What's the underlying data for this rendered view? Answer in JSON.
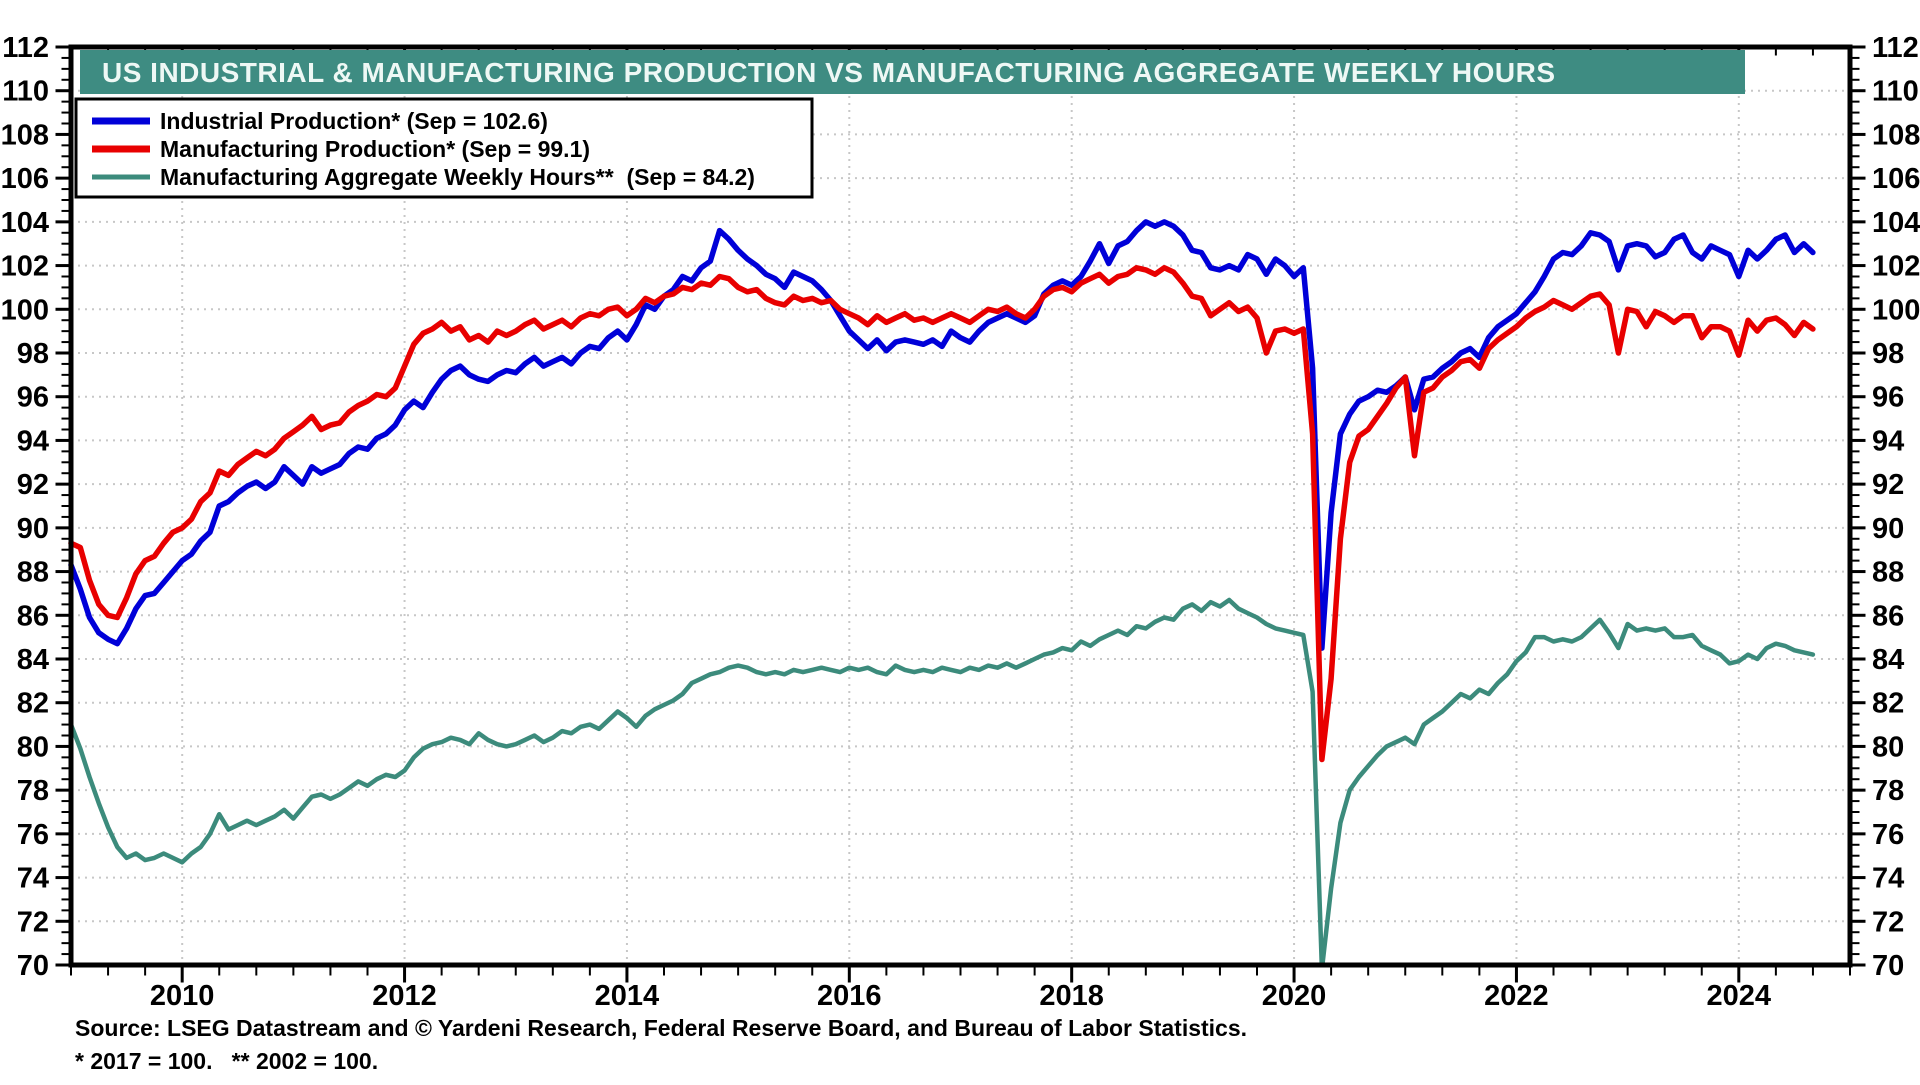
{
  "title": "US INDUSTRIAL & MANUFACTURING PRODUCTION VS MANUFACTURING AGGREGATE WEEKLY HOURS",
  "title_bar_color": "#3e8c82",
  "notes": {
    "source": "Source: LSEG Datastream and © Yardeni Research, Federal Reserve Board, and Bureau of Labor Statistics.",
    "footnote": "* 2017 = 100.   ** 2002 = 100."
  },
  "legend": {
    "items": [
      {
        "label": "Industrial Production* (Sep = 102.6)",
        "color": "#0000d8"
      },
      {
        "label": "Manufacturing Production* (Sep = 99.1)",
        "color": "#e80000"
      },
      {
        "label": "Manufacturing Aggregate Weekly Hours**  (Sep = 84.2)",
        "color": "#3c8b7c"
      }
    ]
  },
  "chart_data": {
    "type": "line",
    "title": "US INDUSTRIAL & MANUFACTURING PRODUCTION VS MANUFACTURING AGGREGATE WEEKLY HOURS",
    "x_start_year": 2009,
    "x_step_months": 1,
    "x_axis": {
      "min": 2009,
      "max": 2025,
      "tick_label_years": [
        2010,
        2012,
        2014,
        2016,
        2018,
        2020,
        2022,
        2024
      ],
      "minor_tick_fraction_of_year": 0.3333
    },
    "y_axis": {
      "min": 70,
      "max": 112,
      "tick_step": 2,
      "minor_step": 0.5,
      "tick_labels": [
        70,
        72,
        74,
        76,
        78,
        80,
        82,
        84,
        86,
        88,
        90,
        92,
        94,
        96,
        98,
        100,
        102,
        104,
        106,
        108,
        110,
        112
      ],
      "both_sides": true
    },
    "grid": {
      "horizontal_every": 2,
      "vertical_every_years": 2,
      "style": "dotted",
      "color": "#c7c7c7"
    },
    "legend_position": "top-left",
    "series": [
      {
        "name": "Industrial Production* (Sep = 102.6)",
        "color": "#0000d8",
        "stroke_width": 5.5,
        "values": [
          88.3,
          87.2,
          85.9,
          85.2,
          84.9,
          84.7,
          85.4,
          86.3,
          86.9,
          87.0,
          87.5,
          88.0,
          88.5,
          88.8,
          89.4,
          89.8,
          91.0,
          91.2,
          91.6,
          91.9,
          92.1,
          91.8,
          92.1,
          92.8,
          92.4,
          92.0,
          92.8,
          92.5,
          92.7,
          92.9,
          93.4,
          93.7,
          93.6,
          94.1,
          94.3,
          94.7,
          95.4,
          95.8,
          95.5,
          96.2,
          96.8,
          97.2,
          97.4,
          97.0,
          96.8,
          96.7,
          97.0,
          97.2,
          97.1,
          97.5,
          97.8,
          97.4,
          97.6,
          97.8,
          97.5,
          98.0,
          98.3,
          98.2,
          98.7,
          99.0,
          98.6,
          99.3,
          100.2,
          100.0,
          100.6,
          100.9,
          101.5,
          101.3,
          101.9,
          102.2,
          103.6,
          103.2,
          102.7,
          102.3,
          102.0,
          101.6,
          101.4,
          101.0,
          101.7,
          101.5,
          101.3,
          100.9,
          100.4,
          99.7,
          99.0,
          98.6,
          98.2,
          98.6,
          98.1,
          98.5,
          98.6,
          98.5,
          98.4,
          98.6,
          98.3,
          99.0,
          98.7,
          98.5,
          99.0,
          99.4,
          99.6,
          99.8,
          99.6,
          99.4,
          99.7,
          100.7,
          101.1,
          101.3,
          101.1,
          101.5,
          102.2,
          103.0,
          102.1,
          102.9,
          103.1,
          103.6,
          104.0,
          103.8,
          104.0,
          103.8,
          103.4,
          102.7,
          102.6,
          101.9,
          101.8,
          102.0,
          101.8,
          102.5,
          102.3,
          101.6,
          102.3,
          102.0,
          101.5,
          101.9,
          97.3,
          84.5,
          90.7,
          94.3,
          95.2,
          95.8,
          96.0,
          96.3,
          96.2,
          96.5,
          96.9,
          95.4,
          96.8,
          96.9,
          97.3,
          97.6,
          98.0,
          98.2,
          97.8,
          98.7,
          99.2,
          99.5,
          99.8,
          100.3,
          100.8,
          101.5,
          102.3,
          102.6,
          102.5,
          102.9,
          103.5,
          103.4,
          103.1,
          101.8,
          102.9,
          103.0,
          102.9,
          102.4,
          102.6,
          103.2,
          103.4,
          102.6,
          102.3,
          102.9,
          102.7,
          102.5,
          101.5,
          102.7,
          102.3,
          102.7,
          103.2,
          103.4,
          102.6,
          103.0,
          102.6
        ]
      },
      {
        "name": "Manufacturing Production* (Sep = 99.1)",
        "color": "#e80000",
        "stroke_width": 5.5,
        "values": [
          89.3,
          89.1,
          87.6,
          86.5,
          86.0,
          85.9,
          86.8,
          87.9,
          88.5,
          88.7,
          89.3,
          89.8,
          90.0,
          90.4,
          91.2,
          91.6,
          92.6,
          92.4,
          92.9,
          93.2,
          93.5,
          93.3,
          93.6,
          94.1,
          94.4,
          94.7,
          95.1,
          94.5,
          94.7,
          94.8,
          95.3,
          95.6,
          95.8,
          96.1,
          96.0,
          96.4,
          97.4,
          98.4,
          98.9,
          99.1,
          99.4,
          99.0,
          99.2,
          98.6,
          98.8,
          98.5,
          99.0,
          98.8,
          99.0,
          99.3,
          99.5,
          99.1,
          99.3,
          99.5,
          99.2,
          99.6,
          99.8,
          99.7,
          100.0,
          100.1,
          99.7,
          100.0,
          100.5,
          100.3,
          100.6,
          100.7,
          101.0,
          100.9,
          101.2,
          101.1,
          101.5,
          101.4,
          101.0,
          100.8,
          100.9,
          100.5,
          100.3,
          100.2,
          100.6,
          100.4,
          100.5,
          100.3,
          100.4,
          100.0,
          99.8,
          99.6,
          99.3,
          99.7,
          99.4,
          99.6,
          99.8,
          99.5,
          99.6,
          99.4,
          99.6,
          99.8,
          99.6,
          99.4,
          99.7,
          100.0,
          99.9,
          100.1,
          99.8,
          99.6,
          100.0,
          100.6,
          100.9,
          101.0,
          100.8,
          101.2,
          101.4,
          101.6,
          101.2,
          101.5,
          101.6,
          101.9,
          101.8,
          101.6,
          101.9,
          101.7,
          101.2,
          100.6,
          100.5,
          99.7,
          100.0,
          100.3,
          99.9,
          100.1,
          99.6,
          98.0,
          99.0,
          99.1,
          98.9,
          99.1,
          94.3,
          79.4,
          83.1,
          89.5,
          93.0,
          94.2,
          94.5,
          95.1,
          95.7,
          96.4,
          96.9,
          93.3,
          96.2,
          96.4,
          96.9,
          97.2,
          97.6,
          97.7,
          97.3,
          98.2,
          98.6,
          98.9,
          99.2,
          99.6,
          99.9,
          100.1,
          100.4,
          100.2,
          100.0,
          100.3,
          100.6,
          100.7,
          100.2,
          98.0,
          100.0,
          99.9,
          99.2,
          99.9,
          99.7,
          99.4,
          99.7,
          99.7,
          98.7,
          99.2,
          99.2,
          99.0,
          97.9,
          99.5,
          99.0,
          99.5,
          99.6,
          99.3,
          98.8,
          99.4,
          99.1
        ]
      },
      {
        "name": "Manufacturing Aggregate Weekly Hours** (Sep = 84.2)",
        "color": "#3c8b7c",
        "stroke_width": 4.5,
        "values": [
          81.0,
          79.9,
          78.6,
          77.4,
          76.3,
          75.4,
          74.9,
          75.1,
          74.8,
          74.9,
          75.1,
          74.9,
          74.7,
          75.1,
          75.4,
          76.0,
          76.9,
          76.2,
          76.4,
          76.6,
          76.4,
          76.6,
          76.8,
          77.1,
          76.7,
          77.2,
          77.7,
          77.8,
          77.6,
          77.8,
          78.1,
          78.4,
          78.2,
          78.5,
          78.7,
          78.6,
          78.9,
          79.5,
          79.9,
          80.1,
          80.2,
          80.4,
          80.3,
          80.1,
          80.6,
          80.3,
          80.1,
          80.0,
          80.1,
          80.3,
          80.5,
          80.2,
          80.4,
          80.7,
          80.6,
          80.9,
          81.0,
          80.8,
          81.2,
          81.6,
          81.3,
          80.9,
          81.4,
          81.7,
          81.9,
          82.1,
          82.4,
          82.9,
          83.1,
          83.3,
          83.4,
          83.6,
          83.7,
          83.6,
          83.4,
          83.3,
          83.4,
          83.3,
          83.5,
          83.4,
          83.5,
          83.6,
          83.5,
          83.4,
          83.6,
          83.5,
          83.6,
          83.4,
          83.3,
          83.7,
          83.5,
          83.4,
          83.5,
          83.4,
          83.6,
          83.5,
          83.4,
          83.6,
          83.5,
          83.7,
          83.6,
          83.8,
          83.6,
          83.8,
          84.0,
          84.2,
          84.3,
          84.5,
          84.4,
          84.8,
          84.6,
          84.9,
          85.1,
          85.3,
          85.1,
          85.5,
          85.4,
          85.7,
          85.9,
          85.8,
          86.3,
          86.5,
          86.2,
          86.6,
          86.4,
          86.7,
          86.3,
          86.1,
          85.9,
          85.6,
          85.4,
          85.3,
          85.2,
          85.1,
          82.5,
          69.8,
          73.5,
          76.5,
          78.0,
          78.6,
          79.1,
          79.6,
          80.0,
          80.2,
          80.4,
          80.1,
          81.0,
          81.3,
          81.6,
          82.0,
          82.4,
          82.2,
          82.6,
          82.4,
          82.9,
          83.3,
          83.9,
          84.3,
          85.0,
          85.0,
          84.8,
          84.9,
          84.8,
          85.0,
          85.4,
          85.8,
          85.2,
          84.5,
          85.6,
          85.3,
          85.4,
          85.3,
          85.4,
          85.0,
          85.0,
          85.1,
          84.6,
          84.4,
          84.2,
          83.8,
          83.9,
          84.2,
          84.0,
          84.5,
          84.7,
          84.6,
          84.4,
          84.3,
          84.2
        ]
      }
    ]
  }
}
